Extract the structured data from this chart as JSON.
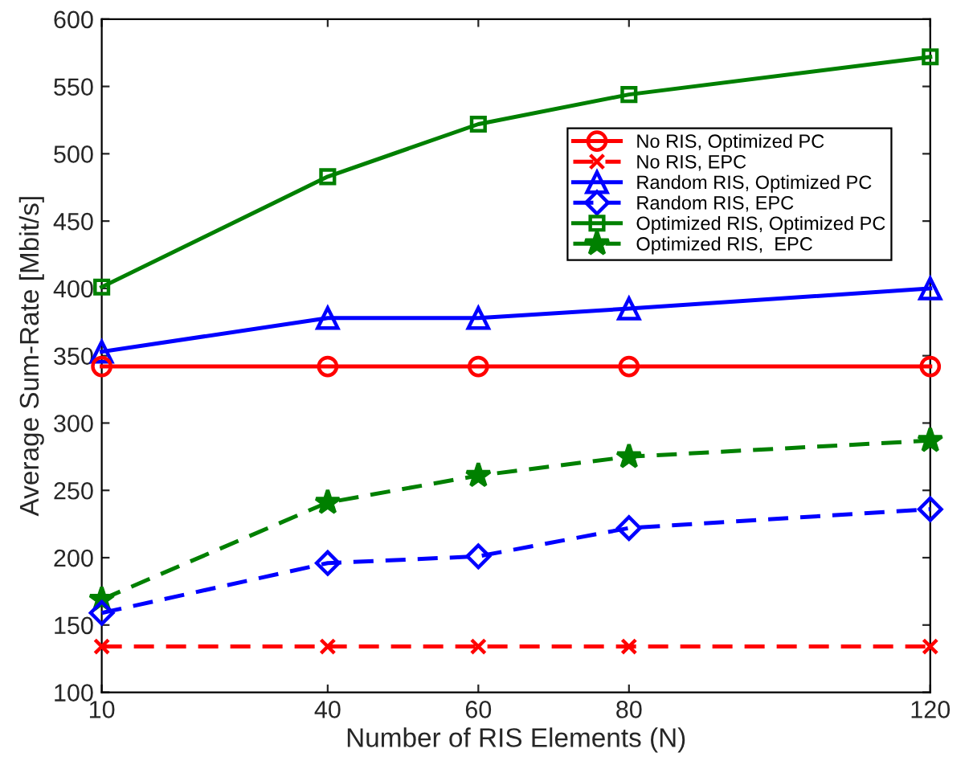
{
  "chart_data": {
    "type": "line",
    "xlabel": "Number of RIS Elements (N)",
    "ylabel": "Average Sum-Rate [Mbit/s]",
    "x": [
      10,
      40,
      60,
      80,
      120
    ],
    "xlim": [
      10,
      120
    ],
    "xticks": [
      10,
      40,
      60,
      80,
      120
    ],
    "ylim": [
      100,
      600
    ],
    "yticks": [
      100,
      150,
      200,
      250,
      300,
      350,
      400,
      450,
      500,
      550,
      600
    ],
    "grid": false,
    "legend": "right",
    "series": [
      {
        "name": "No RIS, Optimized PC",
        "color": "#ff0000",
        "marker": "circle",
        "line_style": "solid",
        "values": [
          342,
          342,
          342,
          342,
          342
        ]
      },
      {
        "name": "No RIS, EPC",
        "color": "#ff0000",
        "marker": "cross",
        "line_style": "dashed",
        "values": [
          134,
          134,
          134,
          134,
          134
        ]
      },
      {
        "name": "Random RIS, Optimized PC",
        "color": "#0000ff",
        "marker": "triangle",
        "line_style": "solid",
        "values": [
          353,
          378,
          378,
          385,
          400
        ]
      },
      {
        "name": "Random RIS, EPC",
        "color": "#0000ff",
        "marker": "diamond",
        "line_style": "dashed",
        "values": [
          159,
          196,
          201,
          222,
          236
        ]
      },
      {
        "name": "Optimized RIS, Optimized PC",
        "color": "#008000",
        "marker": "square",
        "line_style": "solid",
        "values": [
          401,
          483,
          522,
          544,
          572
        ]
      },
      {
        "name": "Optimized RIS,  EPC",
        "color": "#008000",
        "marker": "star",
        "line_style": "dashed",
        "values": [
          169,
          241,
          261,
          275,
          287
        ]
      }
    ]
  }
}
